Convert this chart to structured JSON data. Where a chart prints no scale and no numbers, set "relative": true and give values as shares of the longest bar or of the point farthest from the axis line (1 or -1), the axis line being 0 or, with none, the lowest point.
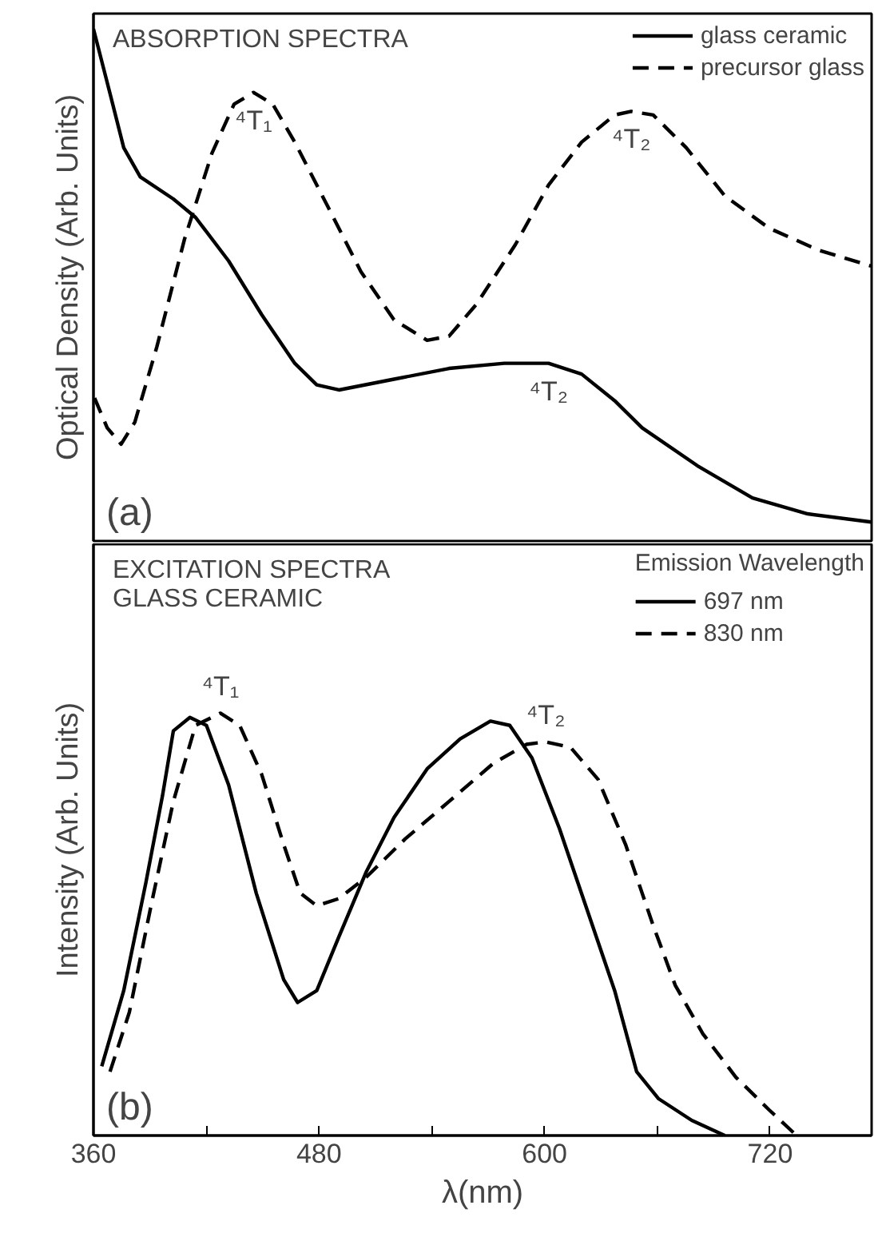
{
  "chart_data": [
    {
      "type": "line",
      "title": "ABSORPTION SPECTRA",
      "ylabel": "Optical Density (Arb. Units)",
      "relative": true,
      "xlim": [
        360,
        774
      ],
      "tick_labels": false,
      "legend": "top right",
      "grid": false,
      "series": [
        {
          "name": "glass ceramic",
          "color": "#000000",
          "line_style": "solid",
          "x": [
            360,
            368.8,
            376.1,
            384.9,
            402.5,
            414.3,
            431.9,
            449.5,
            467.1,
            478.8,
            490.6,
            519.9,
            549.2,
            578.6,
            602.1,
            619.7,
            637.3,
            651.9,
            681.3,
            710.6,
            740,
            773.7
          ],
          "values": [
            1.0,
            0.874,
            0.768,
            0.711,
            0.668,
            0.632,
            0.547,
            0.442,
            0.347,
            0.305,
            0.295,
            0.316,
            0.337,
            0.347,
            0.347,
            0.326,
            0.274,
            0.221,
            0.147,
            0.084,
            0.053,
            0.037
          ]
        },
        {
          "name": "precursor glass",
          "color": "#000000",
          "line_style": "dashed",
          "x": [
            360.6,
            367.3,
            374.7,
            382,
            393.7,
            408.4,
            423.1,
            434.8,
            445.1,
            455.4,
            467.1,
            484.7,
            502.3,
            519.9,
            537.5,
            549.2,
            563.9,
            584.5,
            602.1,
            619.7,
            637.3,
            646.1,
            657.8,
            675.4,
            695.9,
            719.4,
            745.8,
            773.7
          ],
          "values": [
            0.279,
            0.221,
            0.189,
            0.232,
            0.379,
            0.589,
            0.758,
            0.853,
            0.876,
            0.853,
            0.779,
            0.653,
            0.526,
            0.432,
            0.392,
            0.4,
            0.463,
            0.579,
            0.695,
            0.779,
            0.832,
            0.839,
            0.832,
            0.768,
            0.674,
            0.611,
            0.568,
            0.537
          ]
        }
      ],
      "annotations": [
        {
          "text": "⁴T₁",
          "x": 445.1,
          "y": 0.876
        },
        {
          "text": "⁴T₂",
          "x": 646.1,
          "y": 0.839
        },
        {
          "text": "⁴T₂",
          "x": 602.1,
          "y": 0.347
        },
        "(a)"
      ]
    },
    {
      "type": "line",
      "title": "EXCITATION SPECTRA",
      "subtitle": "GLASS CERAMIC",
      "xlabel": "λ(nm)",
      "ylabel": "Intensity (Arb. Units)",
      "relative": true,
      "xlim": [
        360,
        774
      ],
      "xticks": [
        360,
        {
          "value": 420,
          "label": null
        },
        480,
        {
          "value": 540,
          "label": null
        },
        600,
        {
          "value": 660,
          "label": null
        },
        720
      ],
      "tick_labels": "x",
      "legend": "top right",
      "legend_title": "Emission Wavelength",
      "grid": false,
      "series": [
        {
          "name": "697 nm",
          "color": "#000000",
          "line_style": "solid",
          "x": [
            364.4,
            376.1,
            387.9,
            396.7,
            402.5,
            411.3,
            420.1,
            431.9,
            446.6,
            461.2,
            468.6,
            478.8,
            490.6,
            505.2,
            519.9,
            537.5,
            555.1,
            571.2,
            581.5,
            593.3,
            607.9,
            622.6,
            637.3,
            649,
            660.7,
            678.3,
            695.9
          ],
          "values": [
            0.164,
            0.343,
            0.599,
            0.804,
            0.958,
            0.99,
            0.971,
            0.83,
            0.574,
            0.369,
            0.315,
            0.343,
            0.471,
            0.625,
            0.753,
            0.868,
            0.939,
            0.981,
            0.971,
            0.894,
            0.727,
            0.535,
            0.343,
            0.151,
            0.087,
            0.036,
            0
          ]
        },
        {
          "name": "830 nm",
          "color": "#000000",
          "line_style": "dashed",
          "x": [
            368.8,
            379.1,
            390.8,
            402.5,
            414.3,
            427.5,
            437.8,
            449.5,
            461.2,
            470,
            478.8,
            490.6,
            505.2,
            525.8,
            549.2,
            572.7,
            590.3,
            600.6,
            613.8,
            628.5,
            643.1,
            657.8,
            669.5,
            684.2,
            701.8,
            719.4,
            734.1
          ],
          "values": [
            0.151,
            0.292,
            0.548,
            0.791,
            0.971,
            1,
            0.971,
            0.855,
            0.689,
            0.574,
            0.544,
            0.561,
            0.612,
            0.702,
            0.791,
            0.881,
            0.926,
            0.932,
            0.919,
            0.843,
            0.689,
            0.497,
            0.356,
            0.241,
            0.138,
            0.061,
            0
          ]
        }
      ],
      "annotations": [
        {
          "text": "⁴T₁",
          "x": 427.5,
          "y": 1
        },
        {
          "text": "⁴T₂",
          "x": 600.6,
          "y": 0.932
        },
        "(b)"
      ]
    }
  ]
}
